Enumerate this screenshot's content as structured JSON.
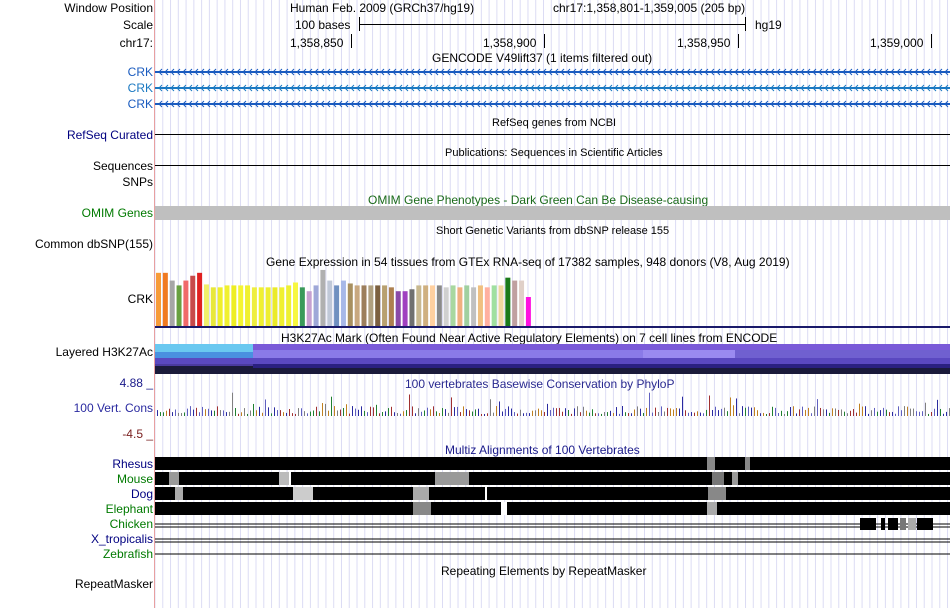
{
  "window_position_label": "Window Position",
  "scale_label": "Scale",
  "chrom_label": "chr17:",
  "assembly_title": "Human Feb. 2009 (GRCh37/hg19)",
  "position_title": "chr17:1,358,801-1,359,005 (205 bp)",
  "scale_text": "100 bases",
  "scale_assembly": "hg19",
  "ticks": [
    "1,358,850",
    "1,358,900",
    "1,358,950",
    "1,359,000"
  ],
  "tracks": {
    "gencode": {
      "title": "GENCODE V49lift37 (1 items filtered out)",
      "labels": [
        "CRK",
        "CRK",
        "CRK"
      ]
    },
    "refseq": {
      "label": "RefSeq Curated",
      "title": "RefSeq genes from NCBI"
    },
    "publications": {
      "label": "Sequences",
      "title": "Publications: Sequences in Scientific Articles"
    },
    "snps": {
      "label": "SNPs"
    },
    "omim": {
      "label": "OMIM Genes",
      "title": "OMIM Gene Phenotypes - Dark Green Can Be Disease-causing"
    },
    "dbsnp": {
      "label": "Common dbSNP(155)",
      "title": "Short Genetic Variants from dbSNP release 155"
    },
    "gtex": {
      "label": "CRK",
      "title": "Gene Expression in 54 tissues from GTEx RNA-seq of 17382 samples, 948 donors (V8, Aug 2019)",
      "values": [
        55,
        55,
        47,
        42,
        47,
        52,
        55,
        43,
        40,
        40,
        42,
        42,
        42,
        42,
        40,
        40,
        40,
        40,
        40,
        42,
        45,
        40,
        36,
        42,
        58,
        47,
        42,
        47,
        44,
        42,
        42,
        42,
        42,
        42,
        40,
        36,
        36,
        38,
        42,
        42,
        42,
        42,
        40,
        42,
        40,
        42,
        40,
        42,
        40,
        42,
        42,
        50,
        47,
        47,
        30
      ],
      "colors": [
        "#f79b38",
        "#f07a21",
        "#a6a6a6",
        "#68a040",
        "#f06a6a",
        "#c84a4a",
        "#e02020",
        "#f0ef6a",
        "#e8e83a",
        "#efef2a",
        "#f0f030",
        "#eeee22",
        "#f5f532",
        "#f0f030",
        "#eeee40",
        "#f0f030",
        "#eeee30",
        "#eaea2a",
        "#f0f030",
        "#eef032",
        "#f7f740",
        "#3a9a5a",
        "#c6a0d0",
        "#9fa8d8",
        "#b0b0b0",
        "#c0c8d8",
        "#7090c0",
        "#a7b8e8",
        "#a89060",
        "#c8a880",
        "#9c7e5c",
        "#b0a080",
        "#7c6040",
        "#b8a070",
        "#ad8050",
        "#8a4aa8",
        "#a040c0",
        "#707070",
        "#c8b890",
        "#cfb080",
        "#ffd0a0",
        "#8a8a8a",
        "#d0d0d0",
        "#a8d8a0",
        "#f0b080",
        "#a0d0a0",
        "#c0c0c0",
        "#f0c080",
        "#ffb0a0",
        "#a0e0a0",
        "#f0d8a0",
        "#1a7a1a",
        "#c0a0a0",
        "#e0d0c8",
        "#ff10e0"
      ]
    },
    "h3k27ac": {
      "label": "Layered H3K27Ac",
      "title": "H3K27Ac Mark (Often Found Near Active Regulatory Elements) on 7 cell lines from ENCODE"
    },
    "conservation": {
      "label": "100 Vert. Cons",
      "max": "4.88 _",
      "min": "-4.5 _",
      "title": "100 vertebrates Basewise Conservation by PhyloP"
    },
    "multiz": {
      "title": "Multiz Alignments of 100 Vertebrates",
      "species": [
        "Rhesus",
        "Mouse",
        "Dog",
        "Elephant",
        "Chicken",
        "X_tropicalis",
        "Zebrafish"
      ]
    },
    "repeatmasker": {
      "label": "RepeatMasker",
      "title": "Repeating Elements by RepeatMasker"
    }
  }
}
